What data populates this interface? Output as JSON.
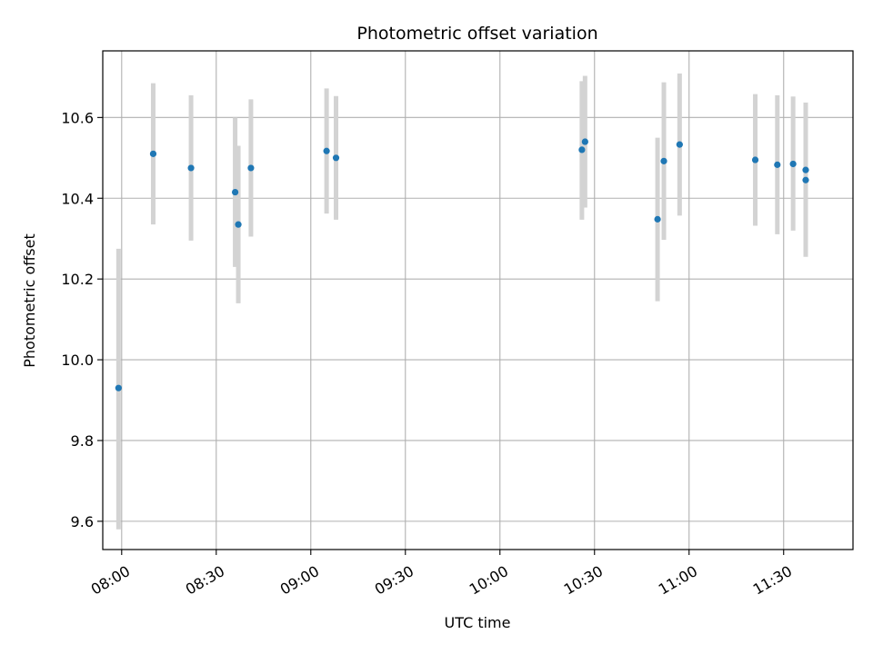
{
  "chart_data": {
    "type": "scatter",
    "title": "Photometric offset variation",
    "xlabel": "UTC time",
    "ylabel": "Photometric offset",
    "x_ticks": [
      "08:00",
      "08:30",
      "09:00",
      "09:30",
      "10:00",
      "10:30",
      "11:00",
      "11:30"
    ],
    "y_ticks": [
      "9.6",
      "9.8",
      "10.0",
      "10.2",
      "10.4",
      "10.6"
    ],
    "xlim": [
      "07:54",
      "11:52"
    ],
    "ylim": [
      9.53,
      10.765
    ],
    "grid": true,
    "marker_color": "#1f77b4",
    "errorbar_color": "#d3d3d3",
    "points": [
      {
        "t": "07:59",
        "y": 9.93,
        "lo": 9.58,
        "hi": 10.275
      },
      {
        "t": "08:10",
        "y": 10.51,
        "lo": 10.335,
        "hi": 10.685
      },
      {
        "t": "08:22",
        "y": 10.475,
        "lo": 10.295,
        "hi": 10.655
      },
      {
        "t": "08:36",
        "y": 10.415,
        "lo": 10.23,
        "hi": 10.6
      },
      {
        "t": "08:37",
        "y": 10.335,
        "lo": 10.14,
        "hi": 10.53
      },
      {
        "t": "08:41",
        "y": 10.475,
        "lo": 10.305,
        "hi": 10.645
      },
      {
        "t": "09:05",
        "y": 10.517,
        "lo": 10.362,
        "hi": 10.672
      },
      {
        "t": "09:08",
        "y": 10.5,
        "lo": 10.347,
        "hi": 10.653
      },
      {
        "t": "10:26",
        "y": 10.52,
        "lo": 10.347,
        "hi": 10.69
      },
      {
        "t": "10:27",
        "y": 10.54,
        "lo": 10.377,
        "hi": 10.703
      },
      {
        "t": "10:50",
        "y": 10.348,
        "lo": 10.145,
        "hi": 10.55
      },
      {
        "t": "10:52",
        "y": 10.492,
        "lo": 10.297,
        "hi": 10.687
      },
      {
        "t": "10:57",
        "y": 10.533,
        "lo": 10.357,
        "hi": 10.709
      },
      {
        "t": "11:21",
        "y": 10.495,
        "lo": 10.332,
        "hi": 10.658
      },
      {
        "t": "11:28",
        "y": 10.483,
        "lo": 10.311,
        "hi": 10.655
      },
      {
        "t": "11:33",
        "y": 10.485,
        "lo": 10.32,
        "hi": 10.652
      },
      {
        "t": "11:37",
        "y": 10.47,
        "lo": 10.305,
        "hi": 10.637
      },
      {
        "t": "11:37",
        "y": 10.445,
        "lo": 10.255,
        "hi": 10.635
      }
    ]
  }
}
